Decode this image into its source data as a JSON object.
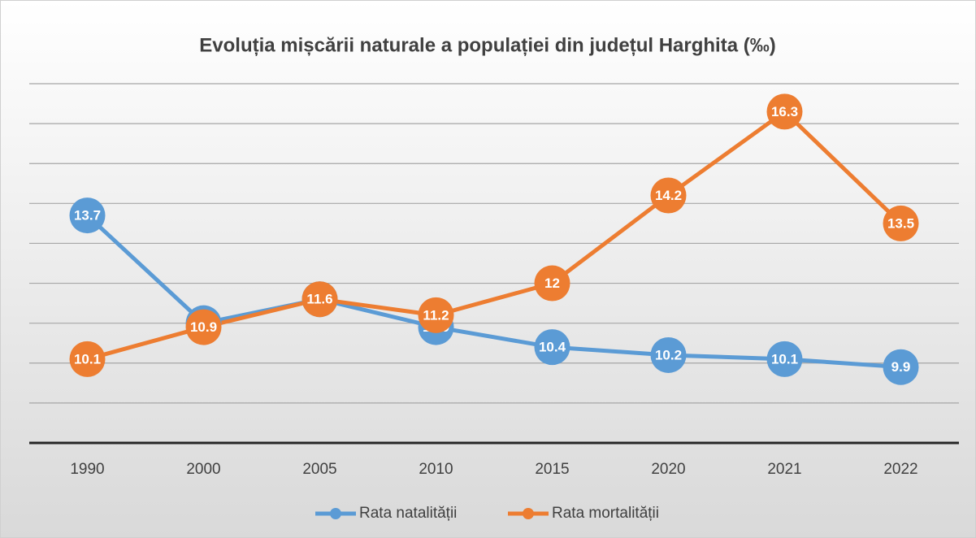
{
  "chart_data": {
    "type": "line",
    "title": "Evoluția mișcării naturale a populației din județul Harghita (‰)",
    "categories": [
      "1990",
      "2000",
      "2005",
      "2010",
      "2015",
      "2020",
      "2021",
      "2022"
    ],
    "series": [
      {
        "name": "Rata natalității",
        "color": "#5b9bd5",
        "values": [
          13.7,
          11,
          11.6,
          10.9,
          10.4,
          10.2,
          10.1,
          9.9
        ]
      },
      {
        "name": "Rata mortalității",
        "color": "#ed7d31",
        "values": [
          10.1,
          10.9,
          11.6,
          11.2,
          12,
          14.2,
          16.3,
          13.5
        ]
      }
    ],
    "ylim": [
      8,
      17
    ],
    "yticks": [
      8,
      9,
      10,
      11,
      12,
      13,
      14,
      15,
      16,
      17
    ],
    "grid": true,
    "legend": "bottom"
  }
}
